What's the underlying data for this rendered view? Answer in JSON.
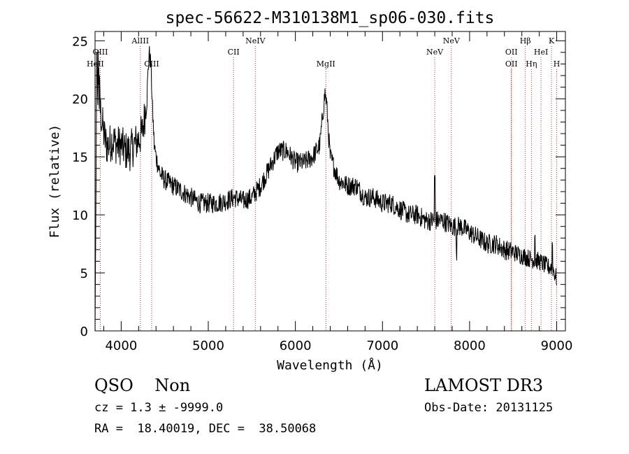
{
  "chart_data": {
    "type": "line",
    "title": "spec-56622-M310138M1_sp06-030.fits",
    "xlabel": "Wavelength (Å)",
    "ylabel": "Flux (relative)",
    "xlim": [
      3700,
      9100
    ],
    "ylim": [
      0,
      25.8
    ],
    "x_ticks": [
      4000,
      5000,
      6000,
      7000,
      8000,
      9000
    ],
    "x_tick_labels": [
      "4000",
      "5000",
      "6000",
      "7000",
      "8000",
      "9000"
    ],
    "y_ticks": [
      0,
      5,
      10,
      15,
      20,
      25
    ],
    "y_tick_labels": [
      "0",
      "5",
      "10",
      "15",
      "20",
      "25"
    ],
    "grid": false,
    "line_color": "#000000",
    "marker_color": "#b03a2e",
    "lines": [
      {
        "name": "OIII",
        "x": 3760,
        "row": 1
      },
      {
        "name": "HeII",
        "x": 3703,
        "row": 2
      },
      {
        "name": "AlIII",
        "x": 4220,
        "row": 0
      },
      {
        "name": "CIII",
        "x": 4350,
        "row": 2
      },
      {
        "name": "CII",
        "x": 5290,
        "row": 1
      },
      {
        "name": "NeIV",
        "x": 5540,
        "row": 0
      },
      {
        "name": "MgII",
        "x": 6350,
        "row": 2
      },
      {
        "name": "NeV",
        "x": 7600,
        "row": 1
      },
      {
        "name": "NeV",
        "x": 7790,
        "row": 0
      },
      {
        "name": "OII",
        "x": 8480,
        "row": 1
      },
      {
        "name": "OII",
        "x": 8480,
        "row": 2
      },
      {
        "name": "Hβ",
        "x": 8640,
        "row": 0
      },
      {
        "name": "Hη",
        "x": 8710,
        "row": 2
      },
      {
        "name": "HeI",
        "x": 8820,
        "row": 1
      },
      {
        "name": "K",
        "x": 8940,
        "row": 0
      },
      {
        "name": "H",
        "x": 9000,
        "row": 2
      }
    ],
    "series": [
      {
        "x": [
          3700,
          3720,
          3740,
          3760,
          3780,
          3800,
          3830,
          3860,
          3900,
          3950,
          4000,
          4050,
          4100,
          4150,
          4200,
          4240,
          4270,
          4300,
          4320,
          4340,
          4360,
          4380,
          4400,
          4450,
          4500,
          4600,
          4700,
          4800,
          4900,
          5000,
          5100,
          5200,
          5300,
          5400,
          5500,
          5600,
          5700,
          5800,
          5900,
          6000,
          6100,
          6200,
          6280,
          6320,
          6340,
          6360,
          6380,
          6400,
          6450,
          6500,
          6600,
          6700,
          6800,
          6900,
          7000,
          7100,
          7200,
          7300,
          7400,
          7500,
          7600,
          7700,
          7800,
          7900,
          8000,
          8100,
          8200,
          8300,
          8400,
          8500,
          8600,
          8700,
          8800,
          8900,
          8950,
          9000
        ],
        "y": [
          0.5,
          21,
          20,
          19,
          18,
          17,
          16,
          16,
          16.5,
          16,
          16,
          15.5,
          15.5,
          16,
          16.5,
          17,
          18.5,
          21,
          24,
          23,
          19,
          16,
          15,
          13.5,
          13,
          12.5,
          12,
          11.5,
          11,
          11,
          11,
          11.2,
          11.5,
          11.2,
          11.5,
          12.5,
          14,
          15.5,
          15.5,
          14.5,
          14.5,
          15,
          16,
          19,
          20.5,
          19.5,
          17,
          15,
          14,
          13,
          12.5,
          12.5,
          11.5,
          11.5,
          11,
          11,
          10.5,
          10,
          10,
          9.5,
          9.5,
          9.5,
          9,
          9,
          8.5,
          8,
          7.5,
          7.5,
          7,
          6.8,
          6.5,
          6.2,
          6,
          5.5,
          5.5,
          4.5
        ]
      }
    ]
  },
  "info": {
    "class_text": "QSO    Non",
    "survey_text": "LAMOST DR3",
    "cz_text": "cz = 1.3 ± -9999.0",
    "obs_text": "Obs-Date: 20131125",
    "radec_text": "RA =  18.40019, DEC =  38.50068"
  }
}
